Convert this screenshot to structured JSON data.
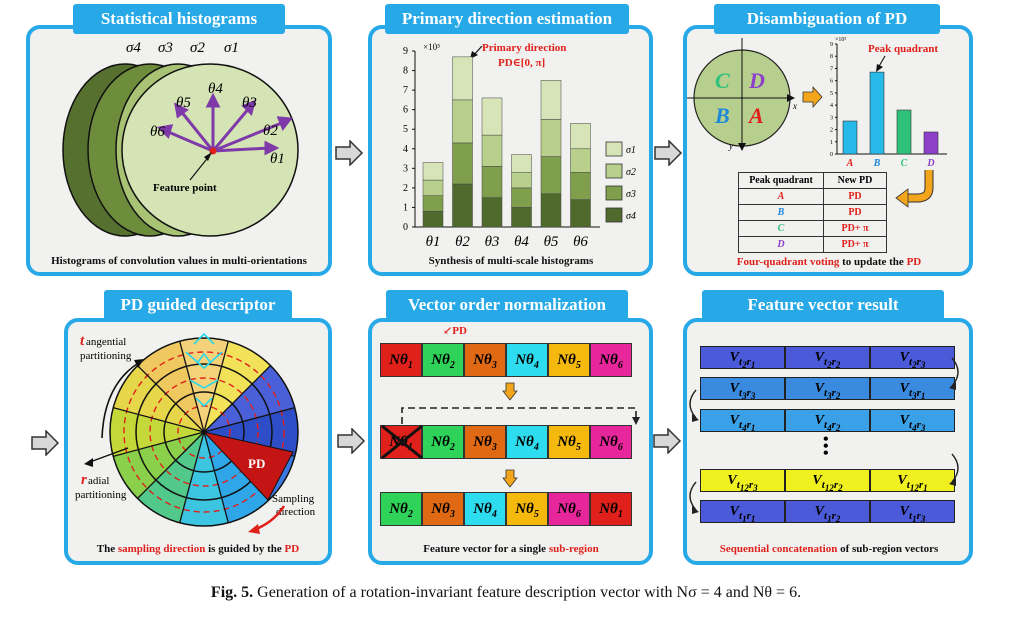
{
  "panels": {
    "p1": {
      "title": "Statistical histograms",
      "caption": "Histograms of convolution values in multi-orientations",
      "sigma_labels": [
        "σ4",
        "σ3",
        "σ2",
        "σ1"
      ],
      "theta_labels": [
        "θ1",
        "θ2",
        "θ3",
        "θ4",
        "θ5",
        "θ6"
      ],
      "feature_point": "Feature point"
    },
    "p2": {
      "title": "Primary direction estimation",
      "caption": "Synthesis of multi-scale histograms",
      "annotation_1": "Primary direction",
      "annotation_2": "PD∈[0,  π]",
      "legend": [
        "σ1",
        "σ2",
        "σ3",
        "σ4"
      ]
    },
    "p3": {
      "title": "Disambiguation of PD",
      "peak_label": "Peak quadrant",
      "quadrants": [
        "A",
        "B",
        "C",
        "D"
      ],
      "table_headers": [
        "Peak quadrant",
        "New PD"
      ],
      "table_rows": [
        [
          "A",
          "PD"
        ],
        [
          "B",
          "PD"
        ],
        [
          "C",
          "PD+ π"
        ],
        [
          "D",
          "PD+ π"
        ]
      ],
      "caption_red": "Four-quadrant voting",
      "caption_mid": " to update the ",
      "caption_end": "PD"
    },
    "p4": {
      "title": "PD guided descriptor",
      "tangential": "angential",
      "tangential_t": "t",
      "tangential_2": "partitioning",
      "radial": "adial",
      "radial_r": "r",
      "radial_2": "partitioning",
      "pd": "PD",
      "sampling": "Sampling",
      "direction": "direction",
      "cap_a": "The ",
      "cap_b": "sampling direction",
      "cap_c": " is guided by the ",
      "cap_d": "PD"
    },
    "p5": {
      "title": "Vector order normalization",
      "pd_label": "PD",
      "caption_a": "Feature vector for a single ",
      "caption_b": "sub-region"
    },
    "p6": {
      "title": "Feature vector result",
      "caption_a": "Sequential concatenation",
      "caption_b": " of sub-region vectors"
    }
  },
  "chart_data": [
    {
      "type": "bar",
      "title": "Primary direction estimation",
      "categories": [
        "θ1",
        "θ2",
        "θ3",
        "θ4",
        "θ5",
        "θ6"
      ],
      "y_multiplier": "×10³",
      "ylim": [
        0,
        9
      ],
      "series": [
        {
          "name": "σ4",
          "values": [
            0.8,
            2.2,
            1.5,
            1.0,
            1.7,
            1.4
          ]
        },
        {
          "name": "σ3",
          "values": [
            0.8,
            2.1,
            1.6,
            1.0,
            1.9,
            1.4
          ]
        },
        {
          "name": "σ2",
          "values": [
            0.8,
            2.2,
            1.6,
            0.8,
            1.9,
            1.2
          ]
        },
        {
          "name": "σ1",
          "values": [
            0.9,
            2.2,
            1.9,
            0.9,
            2.0,
            1.3
          ]
        }
      ],
      "yticks": [
        0,
        1,
        2,
        3,
        4,
        5,
        6,
        7,
        8,
        9
      ],
      "colors": {
        "s1": "#d6e4b8",
        "s2": "#b9d08c",
        "s3": "#7f9f4c",
        "s4": "#4f6a2c"
      }
    },
    {
      "type": "bar",
      "title": "Disambiguation of PD",
      "categories": [
        "A",
        "B",
        "C",
        "D"
      ],
      "values": [
        2.7,
        6.7,
        3.6,
        1.8
      ],
      "ylim": [
        0,
        9
      ],
      "y_multiplier": "×10³",
      "yticks": [
        0,
        1,
        2,
        3,
        4,
        5,
        6,
        7,
        8,
        9
      ],
      "colors": [
        "#27b9e8",
        "#27b9e8",
        "#30c27a",
        "#8c3fc8"
      ]
    }
  ],
  "vector_rows": {
    "row1": [
      "Nθ1",
      "Nθ2",
      "Nθ3",
      "Nθ4",
      "Nθ5",
      "Nθ6"
    ],
    "row3": [
      "Nθ2",
      "Nθ3",
      "Nθ4",
      "Nθ5",
      "Nθ6",
      "Nθ1"
    ]
  },
  "concat": [
    [
      "Vt2r1",
      "Vt2r2",
      "Vt2r3"
    ],
    [
      "Vt3r3",
      "Vt3r2",
      "Vt3r1"
    ],
    [
      "Vt4r1",
      "Vt4r2",
      "Vt4r3"
    ],
    [
      "Vt12r3",
      "Vt12r2",
      "Vt12r1"
    ],
    [
      "Vt1r1",
      "Vt1r2",
      "Vt1r3"
    ]
  ],
  "figure_caption": {
    "bold": "Fig. 5.",
    "text": " Generation of a rotation-invariant feature description vector with Nσ = 4 and Nθ = 6."
  }
}
